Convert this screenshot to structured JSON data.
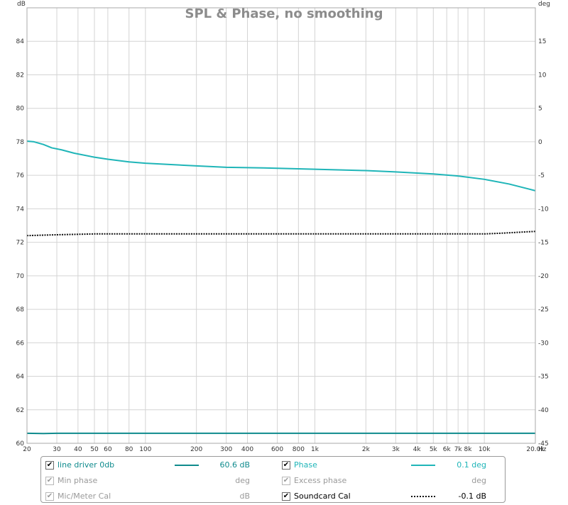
{
  "chart_data": {
    "type": "line",
    "title": "SPL & Phase, no smoothing",
    "x_axis": {
      "scale": "log",
      "range": [
        20,
        20000
      ],
      "unit": "Hz",
      "ticks": [
        20,
        30,
        40,
        50,
        60,
        80,
        100,
        200,
        300,
        400,
        600,
        800,
        1000,
        2000,
        3000,
        4000,
        5000,
        6000,
        7000,
        8000,
        10000,
        20000
      ],
      "tick_labels": [
        "20",
        "30",
        "40",
        "50",
        "60",
        "80",
        "100",
        "200",
        "300",
        "400",
        "600",
        "800",
        "1k",
        "2k",
        "3k",
        "4k",
        "5k",
        "6k",
        "7k",
        "8k",
        "10k",
        "20.0k"
      ]
    },
    "y_left": {
      "unit": "dB",
      "range": [
        60,
        86
      ],
      "ticks": [
        60,
        62,
        64,
        66,
        68,
        70,
        72,
        74,
        76,
        78,
        80,
        82,
        84
      ]
    },
    "y_right": {
      "unit": "deg",
      "range": [
        -45,
        20
      ],
      "ticks": [
        -45,
        -40,
        -35,
        -30,
        -25,
        -20,
        -15,
        -10,
        -5,
        0,
        5,
        10,
        15
      ]
    },
    "grid": true,
    "series": [
      {
        "name": "line driver 0db",
        "axis": "left",
        "color": "#0f8b8d",
        "style": "solid",
        "points": [
          [
            20,
            60.6
          ],
          [
            25,
            60.58
          ],
          [
            30,
            60.6
          ],
          [
            50,
            60.6
          ],
          [
            100,
            60.6
          ],
          [
            1000,
            60.6
          ],
          [
            10000,
            60.6
          ],
          [
            20000,
            60.6
          ]
        ]
      },
      {
        "name": "Phase",
        "axis": "right",
        "color": "#1fb5b8",
        "style": "solid",
        "points": [
          [
            20,
            0.1
          ],
          [
            22,
            0.0
          ],
          [
            25,
            -0.4
          ],
          [
            28,
            -0.9
          ],
          [
            32,
            -1.2
          ],
          [
            38,
            -1.7
          ],
          [
            50,
            -2.3
          ],
          [
            60,
            -2.6
          ],
          [
            80,
            -3.0
          ],
          [
            100,
            -3.2
          ],
          [
            200,
            -3.6
          ],
          [
            300,
            -3.8
          ],
          [
            500,
            -3.9
          ],
          [
            1000,
            -4.1
          ],
          [
            2000,
            -4.3
          ],
          [
            3000,
            -4.5
          ],
          [
            5000,
            -4.8
          ],
          [
            7000,
            -5.1
          ],
          [
            10000,
            -5.6
          ],
          [
            14000,
            -6.3
          ],
          [
            18000,
            -7.0
          ],
          [
            20000,
            -7.3
          ]
        ]
      },
      {
        "name": "Soundcard Cal",
        "axis": "left",
        "color": "#111111",
        "style": "dotted",
        "points": [
          [
            20,
            72.4
          ],
          [
            30,
            72.45
          ],
          [
            50,
            72.5
          ],
          [
            100,
            72.5
          ],
          [
            1000,
            72.5
          ],
          [
            10000,
            72.5
          ],
          [
            13000,
            72.55
          ],
          [
            16000,
            72.6
          ],
          [
            20000,
            72.65
          ]
        ]
      }
    ]
  },
  "legend": [
    {
      "label": "line driver 0db",
      "value": "60.6 dB",
      "checked": true,
      "enabled": true,
      "color": "#0f8b8d",
      "style": "solid"
    },
    {
      "label": "Phase",
      "value": "0.1 deg",
      "checked": true,
      "enabled": true,
      "color": "#1fb5b8",
      "style": "solid"
    },
    {
      "label": "Min phase",
      "value": "deg",
      "checked": true,
      "enabled": false,
      "color": "",
      "style": ""
    },
    {
      "label": "Excess phase",
      "value": "deg",
      "checked": true,
      "enabled": false,
      "color": "",
      "style": ""
    },
    {
      "label": "Mic/Meter Cal",
      "value": "dB",
      "checked": true,
      "enabled": false,
      "color": "",
      "style": ""
    },
    {
      "label": "Soundcard Cal",
      "value": "-0.1 dB",
      "checked": true,
      "enabled": true,
      "color": "#111111",
      "style": "dotted"
    }
  ],
  "colors": {
    "grid": "#d4d4d4",
    "frame": "#a8a8a8",
    "disabled_text": "#9a9a9a"
  },
  "icons": {
    "checkbox": "check-mark-icon"
  }
}
